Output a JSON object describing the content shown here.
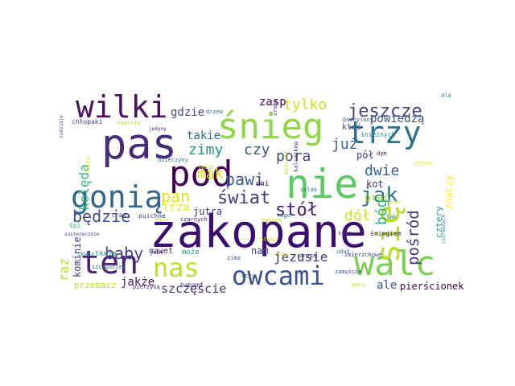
{
  "word_cloud": {
    "background": "#ffffff",
    "words": [
      {
        "text": "zakopane",
        "color": "#3b0f70"
      },
      {
        "text": "pas",
        "color": "#472c7a"
      },
      {
        "text": "nie",
        "color": "#5ec962"
      },
      {
        "text": "śnieg",
        "color": "#90d743"
      },
      {
        "text": "walc",
        "color": "#7ad151"
      },
      {
        "text": "się",
        "color": "#b5de2b"
      },
      {
        "text": "pod",
        "color": "#440154"
      },
      {
        "text": "owcami",
        "color": "#3b528b"
      },
      {
        "text": "trzy",
        "color": "#2c728e"
      },
      {
        "text": "gonią",
        "color": "#31688e"
      },
      {
        "text": "wilki",
        "color": "#471063"
      },
      {
        "text": "ten",
        "color": "#482475"
      },
      {
        "text": "nas",
        "color": "#c2df23"
      },
      {
        "text": "jeszcze",
        "color": "#414487"
      },
      {
        "text": "będzie",
        "color": "#3e4a89"
      },
      {
        "text": "jak",
        "color": "#2a788e"
      },
      {
        "text": "świat",
        "color": "#443983"
      },
      {
        "text": "stół",
        "color": "#482173"
      },
      {
        "text": "pawi",
        "color": "#38598c"
      },
      {
        "text": "baby",
        "color": "#433e85"
      },
      {
        "text": "zimy",
        "color": "#21918c"
      },
      {
        "text": "czy",
        "color": "#3b528b"
      },
      {
        "text": "mak",
        "color": "#dde318"
      },
      {
        "text": "pan",
        "color": "#e2e418"
      },
      {
        "text": "pośród",
        "color": "#46337e"
      },
      {
        "text": "bóg",
        "color": "#28ae80"
      },
      {
        "text": "dwie",
        "color": "#355f8d"
      },
      {
        "text": "dół",
        "color": "#d0e11c"
      },
      {
        "text": "już",
        "color": "#33638d"
      },
      {
        "text": "tylko",
        "color": "#cde11d"
      },
      {
        "text": "pora",
        "color": "#404688"
      },
      {
        "text": "powiedzą",
        "color": "#3a548c"
      },
      {
        "text": "takie",
        "color": "#2f6c8e"
      },
      {
        "text": "gdzie",
        "color": "#3e4989"
      },
      {
        "text": "zasp",
        "color": "#440154"
      },
      {
        "text": "kolęda",
        "color": "#35b779"
      },
      {
        "text": "jezusie",
        "color": "#46307e"
      },
      {
        "text": "raz",
        "color": "#bddf26"
      },
      {
        "text": "jakże",
        "color": "#48186a"
      },
      {
        "text": "szczęście",
        "color": "#472a7a"
      },
      {
        "text": "ale",
        "color": "#39568c"
      },
      {
        "text": "pierścionek",
        "color": "#440154"
      },
      {
        "text": "pół",
        "color": "#453781"
      },
      {
        "text": "kot",
        "color": "#472d7b"
      },
      {
        "text": "prać",
        "color": "#a8db34"
      },
      {
        "text": "znaczy",
        "color": "#fde725"
      },
      {
        "text": "cztery",
        "color": "#1f9e89"
      },
      {
        "text": "trza",
        "color": "#eae51a"
      },
      {
        "text": "jutra",
        "color": "#46327e"
      },
      {
        "text": "nam",
        "color": "#3f4788"
      },
      {
        "text": "kominie",
        "color": "#433d84"
      },
      {
        "text": "przebacz",
        "color": "#bade28"
      },
      {
        "text": "nawet",
        "color": "#481a6c"
      },
      {
        "text": "może",
        "color": "#20a386"
      },
      {
        "text": "ktoś",
        "color": "#3e4c8a"
      },
      {
        "text": "tkwią",
        "color": "#1f948c"
      },
      {
        "text": "śnieżnych",
        "color": "#25848e"
      },
      {
        "text": "dni",
        "color": "#46085c"
      },
      {
        "text": "kościół",
        "color": "#c8e020"
      },
      {
        "text": "śpi",
        "color": "#29af7f"
      },
      {
        "text": "tras",
        "color": "#3a538b"
      },
      {
        "text": "puichne",
        "color": "#433e85"
      },
      {
        "text": "czarnych",
        "color": "#481d6f"
      },
      {
        "text": "zima",
        "color": "#3a548c"
      },
      {
        "text": "babami",
        "color": "#443983"
      },
      {
        "text": "zamęście",
        "color": "#3d4d8a"
      },
      {
        "text": "pierzyną",
        "color": "#482475"
      },
      {
        "text": "pary",
        "color": "#c0df25"
      },
      {
        "text": "śniegiem",
        "color": "#482071"
      },
      {
        "text": "lak",
        "color": "#29798e"
      },
      {
        "text": "zmierzchowe",
        "color": "#404588"
      },
      {
        "text": "czerwonych",
        "color": "#25858e"
      },
      {
        "text": "dzieczyny",
        "color": "#2e6f8e"
      },
      {
        "text": "boże",
        "color": "#e5e419"
      },
      {
        "text": "jest",
        "color": "#472f7d"
      },
      {
        "text": "tego",
        "color": "#31678e"
      },
      {
        "text": "drzew",
        "color": "#355f8d"
      },
      {
        "text": "zrobi",
        "color": "#46337e"
      },
      {
        "text": "pochylony",
        "color": "#38598c"
      },
      {
        "text": "dla",
        "color": "#2a768e"
      },
      {
        "text": "siwieje",
        "color": "#b2dd2d"
      },
      {
        "text": "jedyny",
        "color": "#481668"
      },
      {
        "text": "chłopaki",
        "color": "#404387"
      },
      {
        "text": "zsdziaje",
        "color": "#3b518b"
      },
      {
        "text": "świec",
        "color": "#cae11f"
      },
      {
        "text": "szczęściem",
        "color": "#2f6b8e"
      },
      {
        "text": "tkwią",
        "color": "#1e9b8a"
      },
      {
        "text": "trma",
        "color": "#e7e419"
      },
      {
        "text": "płaki",
        "color": "#dae319"
      },
      {
        "text": "oczy",
        "color": "#3e4c8a"
      },
      {
        "text": "dym",
        "color": "#46085c"
      },
      {
        "text": "udał",
        "color": "#2c738e"
      },
      {
        "text": "drogą",
        "color": "#453882"
      },
      {
        "text": "kuśtem",
        "color": "#c5e021"
      },
      {
        "text": "kalcatków",
        "color": "#404688"
      },
      {
        "text": "szlak",
        "color": "#2b748e"
      },
      {
        "text": "susterecznie",
        "color": "#3f4889"
      },
      {
        "text": "zasa",
        "color": "#d5e21a"
      },
      {
        "text": "aras",
        "color": "#e9e51a"
      },
      {
        "text": "stem",
        "color": "#482878"
      },
      {
        "text": "zniem",
        "color": "#e4e419"
      }
    ]
  }
}
